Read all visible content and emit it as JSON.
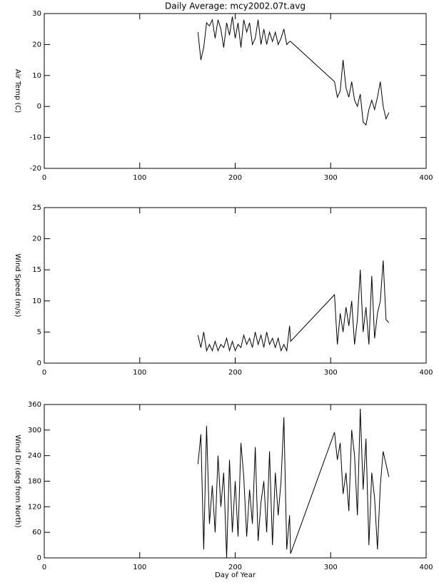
{
  "chart_data": [
    {
      "type": "line",
      "title": "Daily Average: mcy2002.07t.avg",
      "ylabel": "Air Temp (C)",
      "x": [
        161,
        164,
        167,
        170,
        173,
        176,
        179,
        182,
        185,
        188,
        191,
        194,
        197,
        200,
        203,
        206,
        209,
        212,
        215,
        218,
        221,
        224,
        227,
        230,
        233,
        236,
        239,
        242,
        245,
        248,
        251,
        254,
        257,
        258,
        304,
        307,
        310,
        313,
        316,
        319,
        322,
        325,
        328,
        331,
        334,
        337,
        340,
        343,
        346,
        349,
        352,
        355,
        358,
        361
      ],
      "values": [
        24,
        15,
        19,
        27,
        26,
        28,
        22,
        28,
        25,
        19,
        27,
        23,
        29,
        22,
        27,
        19,
        28,
        24,
        27,
        20,
        22,
        28,
        20,
        25,
        20,
        24,
        21,
        24,
        20,
        22,
        25,
        20,
        21,
        21,
        8,
        3,
        5,
        15,
        6,
        3,
        8,
        2,
        0,
        4,
        -5,
        -6,
        -1,
        2,
        -1,
        3,
        8,
        0,
        -4,
        -2
      ],
      "color": "#000000",
      "xlim": [
        0,
        400
      ],
      "xticks": [
        0,
        100,
        200,
        300,
        400
      ],
      "ylim": [
        -20,
        30
      ],
      "yticks": [
        -20,
        -10,
        0,
        10,
        20,
        30
      ]
    },
    {
      "type": "line",
      "ylabel": "Wind Speed (m/s)",
      "x": [
        161,
        164,
        167,
        170,
        173,
        176,
        179,
        182,
        185,
        188,
        191,
        194,
        197,
        200,
        203,
        206,
        209,
        212,
        215,
        218,
        221,
        224,
        227,
        230,
        233,
        236,
        239,
        242,
        245,
        248,
        251,
        254,
        257,
        258,
        304,
        307,
        310,
        313,
        316,
        319,
        322,
        325,
        328,
        331,
        334,
        337,
        340,
        343,
        346,
        349,
        352,
        355,
        358,
        361
      ],
      "values": [
        4.5,
        2.5,
        5,
        2,
        3,
        2,
        3.5,
        2,
        3,
        2.5,
        4,
        2,
        3.5,
        2,
        3,
        2.5,
        4.5,
        3,
        4,
        2.5,
        5,
        3,
        4.5,
        2.5,
        5,
        3,
        4,
        2.5,
        4,
        2,
        3,
        2,
        6,
        3.5,
        11,
        3,
        8,
        5,
        9,
        6,
        10,
        3,
        7,
        15,
        5,
        9,
        3,
        14,
        4,
        8,
        10,
        16.5,
        7,
        6.5
      ],
      "color": "#000000",
      "xlim": [
        0,
        400
      ],
      "xticks": [
        0,
        100,
        200,
        300,
        400
      ],
      "ylim": [
        0,
        25
      ],
      "yticks": [
        0,
        5,
        10,
        15,
        20,
        25
      ]
    },
    {
      "type": "line",
      "ylabel": "Wind Dir (deg from North)",
      "xlabel": "Day of Year",
      "x": [
        161,
        164,
        167,
        170,
        173,
        176,
        179,
        182,
        185,
        188,
        191,
        194,
        197,
        200,
        203,
        206,
        209,
        212,
        215,
        218,
        221,
        224,
        227,
        230,
        233,
        236,
        239,
        242,
        245,
        248,
        251,
        254,
        257,
        258,
        304,
        307,
        310,
        313,
        316,
        319,
        322,
        325,
        328,
        331,
        334,
        337,
        340,
        343,
        346,
        349,
        352,
        355,
        358,
        361
      ],
      "values": [
        220,
        290,
        20,
        310,
        80,
        170,
        60,
        240,
        120,
        200,
        0,
        230,
        60,
        180,
        50,
        270,
        190,
        50,
        160,
        80,
        260,
        40,
        130,
        180,
        60,
        250,
        30,
        200,
        100,
        180,
        330,
        20,
        100,
        10,
        295,
        230,
        270,
        150,
        200,
        110,
        300,
        240,
        100,
        350,
        160,
        280,
        30,
        200,
        140,
        20,
        170,
        250,
        220,
        190
      ],
      "color": "#000000",
      "xlim": [
        0,
        400
      ],
      "xticks": [
        0,
        100,
        200,
        300,
        400
      ],
      "ylim": [
        0,
        360
      ],
      "yticks": [
        0,
        60,
        120,
        180,
        240,
        300,
        360
      ]
    }
  ]
}
